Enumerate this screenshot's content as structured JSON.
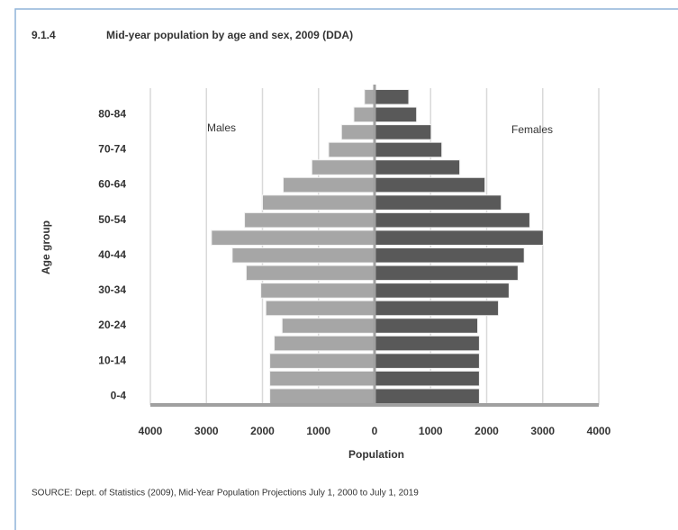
{
  "chart_data": {
    "type": "pyramid",
    "title": "9.1.4",
    "subtitle": "Mid-year population by age and sex, 2009 (DDA)",
    "x_label": "Population",
    "y_label": "Age group",
    "categories": [
      "0-4",
      null,
      "10-14",
      null,
      "20-24",
      null,
      "30-34",
      null,
      "40-44",
      null,
      "50-54",
      null,
      "60-64",
      null,
      "70-74",
      null,
      "80-84",
      null
    ],
    "series": [
      {
        "name": "Males",
        "color": "#a6a6a6",
        "values": [
          -1870,
          -1870,
          -1870,
          -1790,
          -1650,
          -1940,
          -2030,
          -2290,
          -2540,
          -2910,
          -2320,
          -2000,
          -1630,
          -1120,
          -820,
          -590,
          -370,
          -180
        ]
      },
      {
        "name": "Females",
        "color": "#595959",
        "values": [
          1870,
          1870,
          1870,
          1870,
          1840,
          2210,
          2400,
          2560,
          2670,
          3010,
          2770,
          2260,
          1970,
          1520,
          1200,
          1010,
          750,
          610
        ]
      }
    ],
    "xlim": [
      -4000,
      4000
    ],
    "xticks": [
      {
        "value": -4000,
        "label": "4000"
      },
      {
        "value": -3000,
        "label": "3000"
      },
      {
        "value": -2000,
        "label": "2000"
      },
      {
        "value": -1000,
        "label": "1000"
      },
      0,
      1000,
      2000,
      3000,
      4000
    ],
    "grid": true,
    "source": "SOURCE: Dept. of Statistics (2009), Mid-Year Population Projections July 1, 2000 to July 1, 2019"
  }
}
